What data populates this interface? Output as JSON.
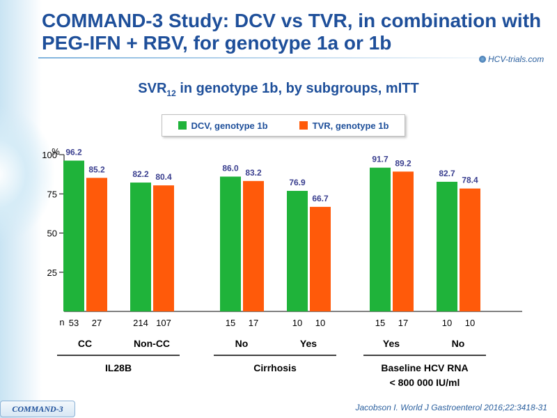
{
  "title": "COMMAND-3 Study: DCV vs TVR, in combination with PEG-IFN + RBV, for genotype 1a or 1b",
  "logo_text": "HCV-trials.com",
  "subtitle_main": "SVR",
  "subtitle_sub": "12",
  "subtitle_rest": " in genotype 1b, by subgroups, mITT",
  "footer_tab": "COMMAND-3",
  "citation": "Jacobson I. World J Gastroenterol 2016;22:3418-31",
  "colors": {
    "dcv": "#1fb33a",
    "tvr": "#ff5a0a",
    "text_blue": "#1e4f9a",
    "value_label": "#3a3f8f"
  },
  "chart_data": {
    "type": "bar",
    "ylabel": "%",
    "ylim": [
      0,
      100
    ],
    "yticks": [
      25,
      50,
      75,
      100
    ],
    "n_label": "n",
    "series": [
      {
        "name": "DCV, genotype 1b"
      },
      {
        "name": "TVR, genotype 1b"
      }
    ],
    "groups": [
      {
        "label": "IL28B",
        "label2": "",
        "categories": [
          {
            "label": "CC",
            "values": [
              96.2,
              85.2
            ],
            "value_labels": [
              "96.2",
              "85.2"
            ],
            "n": [
              "53",
              "27"
            ]
          },
          {
            "label": "Non-CC",
            "values": [
              82.2,
              80.4
            ],
            "value_labels": [
              "82.2",
              "80.4"
            ],
            "n": [
              "214",
              "107"
            ]
          }
        ]
      },
      {
        "label": "Cirrhosis",
        "label2": "",
        "categories": [
          {
            "label": "No",
            "values": [
              86.0,
              83.2
            ],
            "value_labels": [
              "86.0",
              "83.2"
            ],
            "n": [
              "15",
              "17"
            ]
          },
          {
            "label": "Yes",
            "values": [
              76.9,
              66.7
            ],
            "value_labels": [
              "76.9",
              "66.7"
            ],
            "n": [
              "10",
              "10"
            ]
          }
        ]
      },
      {
        "label": "Baseline HCV RNA",
        "label2": "< 800 000 IU/ml",
        "categories": [
          {
            "label": "Yes",
            "values": [
              91.7,
              89.2
            ],
            "value_labels": [
              "91.7",
              "89.2"
            ],
            "n": [
              "15",
              "17"
            ]
          },
          {
            "label": "No",
            "values": [
              82.7,
              78.4
            ],
            "value_labels": [
              "82.7",
              "78.4"
            ],
            "n": [
              "10",
              "10"
            ]
          }
        ]
      }
    ]
  }
}
